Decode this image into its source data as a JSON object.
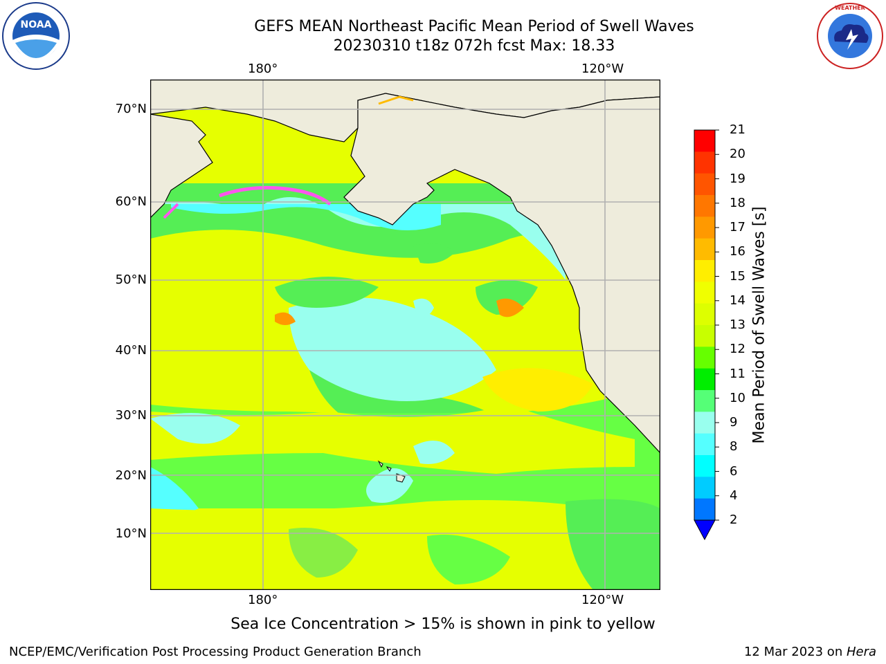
{
  "title": {
    "line1": "GEFS MEAN Northeast Pacific Mean Period of Swell Waves",
    "line2": "20230310 t18z 072h fcst   Max: 18.33"
  },
  "logos": {
    "left": {
      "icon": "noaa-logo",
      "text": "NOAA"
    },
    "right": {
      "icon": "nws-logo",
      "text": "NATIONAL WEATHER SERVICE"
    }
  },
  "map": {
    "lon_labels_top": [
      "180°",
      "120°W"
    ],
    "lon_labels_bottom": [
      "180°",
      "120°W"
    ],
    "lat_labels": [
      "70°N",
      "60°N",
      "50°N",
      "40°N",
      "30°N",
      "20°N",
      "10°N"
    ],
    "land_color": "#eeecdc",
    "grid_color": "#b0b0b0"
  },
  "colorbar": {
    "title": "Mean Period of Swell Waves [s]",
    "ticks": [
      "21",
      "20",
      "19",
      "18",
      "17",
      "16",
      "15",
      "14",
      "13",
      "12",
      "11",
      "10",
      "9",
      "8",
      "6",
      "4",
      "2"
    ],
    "colors_top_to_bottom": [
      "#ff0000",
      "#ff3300",
      "#ff5500",
      "#ff7700",
      "#ff9900",
      "#ffbb00",
      "#ffee00",
      "#f0ff00",
      "#ddff00",
      "#c8ff00",
      "#66ff00",
      "#00ee00",
      "#55ff77",
      "#99ffee",
      "#55ffff",
      "#00ffff",
      "#00ccff",
      "#0077ff"
    ],
    "under_color": "#0000ff"
  },
  "note": "Sea Ice Concentration > 15% is shown in pink to yellow",
  "footer": {
    "left": "NCEP/EMC/Verification Post Processing Product Generation Branch",
    "date": "12 Mar 2023 on ",
    "host": "Hera"
  }
}
